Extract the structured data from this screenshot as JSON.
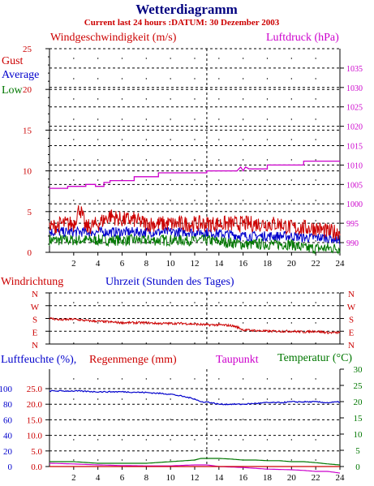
{
  "header": {
    "title": "Wetterdiagramm",
    "subtitle": "Current last 24 hours :DATUM: 30 Dezember 2003"
  },
  "colors": {
    "title": "#000080",
    "red": "#cc0000",
    "blue": "#0000cc",
    "green": "#007700",
    "magenta": "#cc00cc",
    "axis": "#000000"
  },
  "panel1": {
    "left_label": "Windgeschwindigkeit (m/s)",
    "right_label": "Luftdruck (hPa)",
    "legend": [
      "Gust",
      "Average",
      "Low"
    ],
    "x_label": "Uhrzeit (Stunden des Tages)"
  },
  "panel2": {
    "left_label": "Windrichtung",
    "y_ticks": [
      "N",
      "W",
      "S",
      "E",
      "N"
    ]
  },
  "panel3": {
    "left_label_1": "Luftfeuchte (%),",
    "left_label_2": "Regenmenge (mm)",
    "mid_label": "Taupunkt",
    "right_label": "Temperatur (°C)"
  },
  "chart_data": [
    {
      "type": "line",
      "title": "",
      "xlabel": "Uhrzeit (Stunden des Tages)",
      "ylabel": "Windgeschwindigkeit (m/s)",
      "y2label": "Luftdruck (hPa)",
      "xlim": [
        0,
        24
      ],
      "ylim": [
        0,
        25
      ],
      "y2lim": [
        987.5,
        1040
      ],
      "x_ticks": [
        2,
        4,
        6,
        8,
        10,
        12,
        14,
        16,
        18,
        20,
        22,
        24
      ],
      "y_ticks": [
        0,
        5,
        10,
        15,
        20,
        25
      ],
      "y2_ticks": [
        990,
        995,
        1000,
        1005,
        1010,
        1015,
        1020,
        1025,
        1030,
        1035
      ],
      "grid": true,
      "legend": "top-left",
      "series": [
        {
          "name": "Gust",
          "axis": "left",
          "color": "#cc0000",
          "x": [
            0,
            1,
            2,
            2.5,
            3,
            4,
            5,
            6,
            7,
            8,
            9,
            10,
            11,
            12,
            13,
            14,
            15,
            16,
            17,
            18,
            19,
            20,
            21,
            22,
            23,
            24
          ],
          "y": [
            3,
            3.5,
            3.5,
            5.5,
            3,
            3.5,
            4.5,
            4,
            4,
            3.5,
            3.5,
            3.5,
            3.5,
            3.5,
            3.5,
            3.5,
            3.5,
            3.5,
            3.5,
            3.5,
            3.5,
            3,
            3,
            3,
            2.5,
            2.5
          ]
        },
        {
          "name": "Average",
          "axis": "left",
          "color": "#0000cc",
          "x": [
            0,
            1,
            2,
            3,
            4,
            5,
            6,
            7,
            8,
            9,
            10,
            11,
            12,
            13,
            14,
            15,
            16,
            17,
            18,
            19,
            20,
            21,
            22,
            23,
            24
          ],
          "y": [
            2.5,
            2.5,
            2.5,
            2.5,
            2.5,
            2.5,
            2.5,
            2.5,
            2.5,
            2.5,
            2.5,
            2.5,
            2.5,
            2.5,
            2.3,
            2.2,
            2,
            2,
            2,
            2,
            2,
            1.8,
            1.8,
            1.8,
            1.5
          ]
        },
        {
          "name": "Low",
          "axis": "left",
          "color": "#007700",
          "x": [
            0,
            1,
            2,
            3,
            4,
            5,
            6,
            7,
            8,
            9,
            10,
            11,
            12,
            13,
            14,
            15,
            16,
            17,
            18,
            19,
            20,
            21,
            22,
            23,
            24
          ],
          "y": [
            1.5,
            1.5,
            1.5,
            1.5,
            1.5,
            1.5,
            1.5,
            1.5,
            1.5,
            1.5,
            1.5,
            1.5,
            1.5,
            1.5,
            1.3,
            1.2,
            1,
            1,
            1,
            1,
            1,
            0.5,
            0.5,
            0.5,
            0.5
          ]
        },
        {
          "name": "Luftdruck",
          "axis": "right",
          "color": "#cc00cc",
          "x": [
            0,
            1.5,
            1.5,
            3,
            3,
            3.8,
            3.8,
            4.5,
            4.5,
            5,
            5,
            7,
            7,
            9,
            9,
            13,
            13,
            15.5,
            15.8,
            16,
            16.2,
            16.5,
            17.5,
            18,
            18,
            21,
            21,
            24
          ],
          "y": [
            1004,
            1004,
            1004.5,
            1004.5,
            1005,
            1005,
            1004.5,
            1004.5,
            1005.5,
            1005.5,
            1006,
            1006,
            1007,
            1007,
            1008,
            1008,
            1008.5,
            1008.5,
            1009.5,
            1008.5,
            1009.5,
            1009,
            1009,
            1009,
            1010,
            1010,
            1011,
            1011
          ]
        }
      ]
    },
    {
      "type": "line",
      "title": "",
      "ylabel": "Windrichtung",
      "xlim": [
        0,
        24
      ],
      "ylim": [
        0,
        360
      ],
      "y_ticks": [
        "N",
        "E",
        "S",
        "W",
        "N"
      ],
      "series": [
        {
          "name": "Windrichtung",
          "color": "#cc0000",
          "x": [
            0,
            1,
            2,
            3,
            4,
            5,
            6,
            7,
            8,
            9,
            10,
            11,
            12,
            13,
            14,
            15,
            15.5,
            16,
            17,
            18,
            19,
            20,
            21,
            22,
            23,
            24
          ],
          "y": [
            180,
            170,
            175,
            165,
            160,
            155,
            150,
            150,
            150,
            145,
            145,
            145,
            140,
            135,
            135,
            130,
            120,
            100,
            95,
            90,
            90,
            90,
            85,
            90,
            80,
            80
          ]
        }
      ]
    },
    {
      "type": "line",
      "title": "",
      "ylabel": "Luftfeuchte (%), Regenmenge (mm)",
      "y2label": "Temperatur (°C)",
      "xlim": [
        0,
        24
      ],
      "ylim": [
        0,
        125
      ],
      "y_ticks": [
        0,
        20,
        40,
        60,
        80,
        100
      ],
      "y_ticks_rain": [
        "0.0",
        "5.0",
        "10.0",
        "15.0",
        "20.0",
        "25.0"
      ],
      "y2lim": [
        0,
        30
      ],
      "y2_ticks": [
        0,
        5,
        10,
        15,
        20,
        25,
        30
      ],
      "x_ticks": [
        2,
        4,
        6,
        8,
        10,
        12,
        14,
        16,
        18,
        20,
        22,
        24
      ],
      "grid": true,
      "series": [
        {
          "name": "Luftfeuchte",
          "axis": "left",
          "color": "#0000cc",
          "x": [
            0,
            2,
            4,
            6,
            8,
            10,
            11,
            12,
            12.5,
            13,
            14,
            15,
            16,
            17,
            18,
            19,
            20,
            21,
            22,
            23,
            24
          ],
          "y": [
            97,
            97,
            96,
            96,
            95,
            93,
            90,
            87,
            83,
            83,
            80,
            80,
            80,
            81,
            82,
            82,
            83,
            83,
            83,
            82,
            83
          ]
        },
        {
          "name": "Temperatur",
          "axis": "right",
          "color": "#007700",
          "x": [
            0,
            2,
            4,
            6,
            8,
            10,
            12,
            12.5,
            13,
            14,
            15,
            16,
            17,
            18,
            19,
            20,
            21,
            22,
            23,
            24
          ],
          "y": [
            1.5,
            1.5,
            1,
            1,
            1,
            1.5,
            2,
            2.5,
            2.5,
            2.5,
            2.3,
            2,
            2,
            1.8,
            1.8,
            1.5,
            1.5,
            1.2,
            0.8,
            0.5
          ]
        },
        {
          "name": "Taupunkt",
          "axis": "right",
          "color": "#cc00cc",
          "x": [
            0,
            2,
            4,
            6,
            8,
            10,
            12,
            13,
            14,
            16,
            18,
            20,
            21,
            22,
            23,
            24
          ],
          "y": [
            1,
            0.8,
            0.5,
            0.3,
            0.2,
            0.2,
            0.5,
            0.5,
            0,
            -0.3,
            -0.8,
            -1,
            -1.2,
            -1.5,
            -1.5,
            -2
          ]
        },
        {
          "name": "Regenmenge",
          "axis": "left",
          "color": "#cc0000",
          "x": [
            0,
            2,
            4,
            6,
            8,
            10,
            12,
            14,
            16,
            18,
            20,
            22,
            24
          ],
          "y": [
            0,
            0,
            0,
            0,
            0,
            0,
            0,
            0,
            0,
            0,
            0,
            0,
            0
          ]
        }
      ]
    }
  ]
}
